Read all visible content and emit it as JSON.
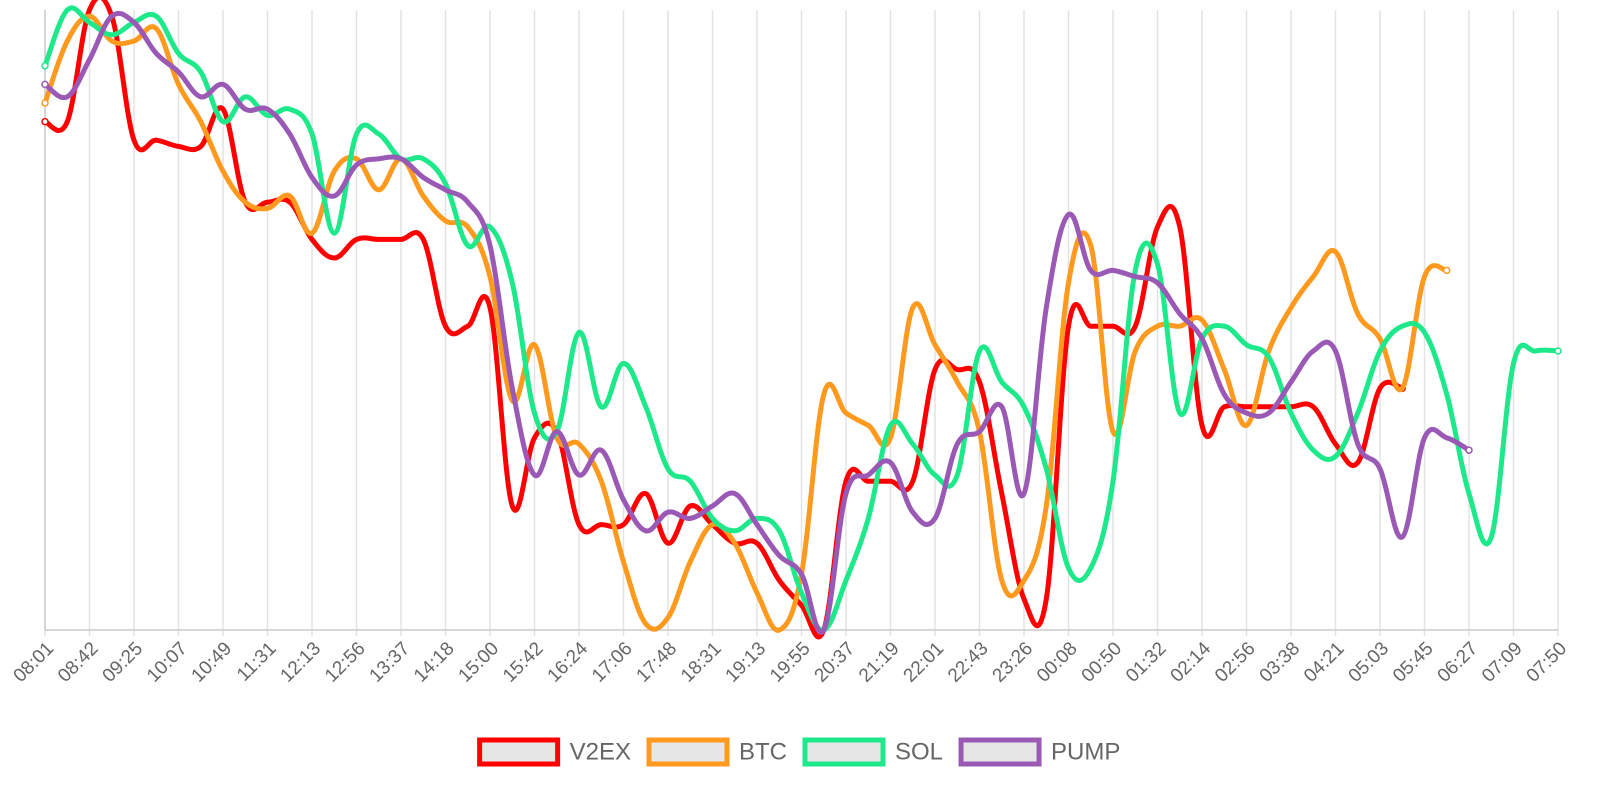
{
  "chart_data": {
    "type": "line",
    "title": "",
    "xlabel": "",
    "ylabel": "",
    "y_axis_labels_visible": false,
    "normalized_y": true,
    "ylim": [
      0,
      1
    ],
    "grid": {
      "vertical": true,
      "horizontal": false
    },
    "legend_position": "bottom-center",
    "x_tick_labels": [
      "08:01",
      "08:42",
      "09:25",
      "10:07",
      "10:49",
      "11:31",
      "12:13",
      "12:56",
      "13:37",
      "14:18",
      "15:00",
      "15:42",
      "16:24",
      "17:06",
      "17:48",
      "18:31",
      "19:13",
      "19:55",
      "20:37",
      "21:19",
      "22:01",
      "22:43",
      "23:26",
      "00:08",
      "00:50",
      "01:32",
      "02:14",
      "02:56",
      "03:38",
      "04:21",
      "05:03",
      "05:45",
      "06:27",
      "07:09",
      "07:50"
    ],
    "series": [
      {
        "name": "V2EX",
        "color": "#ff0000",
        "points": [
          [
            0,
            0.82
          ],
          [
            0.5,
            0.82
          ],
          [
            1,
            1.0
          ],
          [
            1.5,
            0.99
          ],
          [
            2,
            0.79
          ],
          [
            2.5,
            0.79
          ],
          [
            3,
            0.78
          ],
          [
            3.5,
            0.78
          ],
          [
            4,
            0.84
          ],
          [
            4.5,
            0.69
          ],
          [
            5,
            0.69
          ],
          [
            5.5,
            0.69
          ],
          [
            6,
            0.63
          ],
          [
            6.5,
            0.6
          ],
          [
            7,
            0.63
          ],
          [
            7.5,
            0.63
          ],
          [
            8,
            0.63
          ],
          [
            8.5,
            0.63
          ],
          [
            9,
            0.49
          ],
          [
            9.5,
            0.49
          ],
          [
            10,
            0.52
          ],
          [
            10.5,
            0.2
          ],
          [
            11,
            0.31
          ],
          [
            11.5,
            0.32
          ],
          [
            12,
            0.17
          ],
          [
            12.5,
            0.17
          ],
          [
            13,
            0.17
          ],
          [
            13.5,
            0.22
          ],
          [
            14,
            0.14
          ],
          [
            14.5,
            0.2
          ],
          [
            15,
            0.17
          ],
          [
            15.5,
            0.14
          ],
          [
            16,
            0.14
          ],
          [
            16.5,
            0.08
          ],
          [
            17,
            0.04
          ],
          [
            17.5,
            0.0
          ],
          [
            18,
            0.24
          ],
          [
            18.5,
            0.24
          ],
          [
            19,
            0.24
          ],
          [
            19.5,
            0.24
          ],
          [
            20,
            0.42
          ],
          [
            20.5,
            0.42
          ],
          [
            21,
            0.4
          ],
          [
            21.5,
            0.22
          ],
          [
            22,
            0.05
          ],
          [
            22.5,
            0.05
          ],
          [
            23,
            0.49
          ],
          [
            23.5,
            0.49
          ],
          [
            24,
            0.49
          ],
          [
            24.5,
            0.49
          ],
          [
            25,
            0.65
          ],
          [
            25.5,
            0.65
          ],
          [
            26,
            0.33
          ],
          [
            26.5,
            0.36
          ],
          [
            27,
            0.36
          ],
          [
            27.5,
            0.36
          ],
          [
            28,
            0.36
          ],
          [
            28.5,
            0.36
          ],
          [
            29,
            0.3
          ],
          [
            29.5,
            0.27
          ],
          [
            30,
            0.39
          ],
          [
            30.5,
            0.39
          ]
        ]
      },
      {
        "name": "BTC",
        "color": "#ff9a1f",
        "points": [
          [
            0,
            0.85
          ],
          [
            0.5,
            0.95
          ],
          [
            1,
            0.99
          ],
          [
            1.5,
            0.95
          ],
          [
            2,
            0.95
          ],
          [
            2.5,
            0.97
          ],
          [
            3,
            0.88
          ],
          [
            3.5,
            0.82
          ],
          [
            4,
            0.74
          ],
          [
            4.5,
            0.69
          ],
          [
            5,
            0.68
          ],
          [
            5.5,
            0.7
          ],
          [
            6,
            0.64
          ],
          [
            6.5,
            0.74
          ],
          [
            7,
            0.76
          ],
          [
            7.5,
            0.71
          ],
          [
            8,
            0.76
          ],
          [
            8.5,
            0.7
          ],
          [
            9,
            0.66
          ],
          [
            9.5,
            0.65
          ],
          [
            10,
            0.57
          ],
          [
            10.5,
            0.37
          ],
          [
            11,
            0.46
          ],
          [
            11.5,
            0.31
          ],
          [
            12,
            0.3
          ],
          [
            12.5,
            0.24
          ],
          [
            13,
            0.11
          ],
          [
            13.5,
            0.01
          ],
          [
            14,
            0.02
          ],
          [
            14.5,
            0.11
          ],
          [
            15,
            0.17
          ],
          [
            15.5,
            0.14
          ],
          [
            16,
            0.06
          ],
          [
            16.5,
            0.0
          ],
          [
            17,
            0.09
          ],
          [
            17.5,
            0.38
          ],
          [
            18,
            0.35
          ],
          [
            18.5,
            0.33
          ],
          [
            19,
            0.31
          ],
          [
            19.5,
            0.52
          ],
          [
            20,
            0.46
          ],
          [
            20.5,
            0.4
          ],
          [
            21,
            0.32
          ],
          [
            21.5,
            0.08
          ],
          [
            22,
            0.08
          ],
          [
            22.5,
            0.2
          ],
          [
            23,
            0.56
          ],
          [
            23.5,
            0.62
          ],
          [
            24,
            0.32
          ],
          [
            24.5,
            0.45
          ],
          [
            25,
            0.49
          ],
          [
            25.5,
            0.49
          ],
          [
            26,
            0.5
          ],
          [
            26.5,
            0.42
          ],
          [
            27,
            0.33
          ],
          [
            27.5,
            0.45
          ],
          [
            28,
            0.52
          ],
          [
            28.5,
            0.57
          ],
          [
            29,
            0.61
          ],
          [
            29.5,
            0.51
          ],
          [
            30,
            0.47
          ],
          [
            30.5,
            0.39
          ],
          [
            31,
            0.57
          ],
          [
            31.5,
            0.58
          ]
        ]
      },
      {
        "name": "SOL",
        "color": "#1de98b",
        "points": [
          [
            0,
            0.91
          ],
          [
            0.5,
            1.0
          ],
          [
            1,
            0.98
          ],
          [
            1.5,
            0.96
          ],
          [
            2,
            0.98
          ],
          [
            2.5,
            0.99
          ],
          [
            3,
            0.93
          ],
          [
            3.5,
            0.9
          ],
          [
            4,
            0.82
          ],
          [
            4.5,
            0.86
          ],
          [
            5,
            0.83
          ],
          [
            5.5,
            0.84
          ],
          [
            6,
            0.8
          ],
          [
            6.5,
            0.64
          ],
          [
            7,
            0.8
          ],
          [
            7.5,
            0.8
          ],
          [
            8,
            0.76
          ],
          [
            8.5,
            0.76
          ],
          [
            9,
            0.72
          ],
          [
            9.5,
            0.62
          ],
          [
            10,
            0.65
          ],
          [
            10.5,
            0.56
          ],
          [
            11,
            0.35
          ],
          [
            11.5,
            0.32
          ],
          [
            12,
            0.48
          ],
          [
            12.5,
            0.36
          ],
          [
            13,
            0.43
          ],
          [
            13.5,
            0.36
          ],
          [
            14,
            0.26
          ],
          [
            14.5,
            0.24
          ],
          [
            15,
            0.18
          ],
          [
            15.5,
            0.16
          ],
          [
            16,
            0.18
          ],
          [
            16.5,
            0.16
          ],
          [
            17,
            0.06
          ],
          [
            17.5,
            0.0
          ],
          [
            18,
            0.08
          ],
          [
            18.5,
            0.18
          ],
          [
            19,
            0.33
          ],
          [
            19.5,
            0.3
          ],
          [
            20,
            0.25
          ],
          [
            20.5,
            0.25
          ],
          [
            21,
            0.45
          ],
          [
            21.5,
            0.4
          ],
          [
            22,
            0.36
          ],
          [
            22.5,
            0.26
          ],
          [
            23,
            0.1
          ],
          [
            23.5,
            0.1
          ],
          [
            24,
            0.24
          ],
          [
            24.5,
            0.58
          ],
          [
            25,
            0.59
          ],
          [
            25.5,
            0.35
          ],
          [
            26,
            0.47
          ],
          [
            26.5,
            0.49
          ],
          [
            27,
            0.46
          ],
          [
            27.5,
            0.44
          ],
          [
            28,
            0.35
          ],
          [
            28.5,
            0.29
          ],
          [
            29,
            0.28
          ],
          [
            29.5,
            0.35
          ],
          [
            30,
            0.45
          ],
          [
            30.5,
            0.49
          ],
          [
            31,
            0.48
          ],
          [
            31.5,
            0.38
          ],
          [
            32,
            0.22
          ],
          [
            32.5,
            0.15
          ],
          [
            33,
            0.43
          ],
          [
            33.5,
            0.45
          ],
          [
            34,
            0.45
          ]
        ]
      },
      {
        "name": "PUMP",
        "color": "#9b59b6",
        "points": [
          [
            0,
            0.88
          ],
          [
            0.5,
            0.86
          ],
          [
            1,
            0.92
          ],
          [
            1.5,
            0.99
          ],
          [
            2,
            0.98
          ],
          [
            2.5,
            0.93
          ],
          [
            3,
            0.9
          ],
          [
            3.5,
            0.86
          ],
          [
            4,
            0.88
          ],
          [
            4.5,
            0.84
          ],
          [
            5,
            0.84
          ],
          [
            5.5,
            0.8
          ],
          [
            6,
            0.73
          ],
          [
            6.5,
            0.7
          ],
          [
            7,
            0.75
          ],
          [
            7.5,
            0.76
          ],
          [
            8,
            0.76
          ],
          [
            8.5,
            0.73
          ],
          [
            9,
            0.71
          ],
          [
            9.5,
            0.69
          ],
          [
            10,
            0.62
          ],
          [
            10.5,
            0.39
          ],
          [
            11,
            0.25
          ],
          [
            11.5,
            0.32
          ],
          [
            12,
            0.25
          ],
          [
            12.5,
            0.29
          ],
          [
            13,
            0.21
          ],
          [
            13.5,
            0.16
          ],
          [
            14,
            0.19
          ],
          [
            14.5,
            0.18
          ],
          [
            15,
            0.2
          ],
          [
            15.5,
            0.22
          ],
          [
            16,
            0.17
          ],
          [
            16.5,
            0.12
          ],
          [
            17,
            0.09
          ],
          [
            17.5,
            0.0
          ],
          [
            18,
            0.22
          ],
          [
            18.5,
            0.25
          ],
          [
            19,
            0.27
          ],
          [
            19.5,
            0.19
          ],
          [
            20,
            0.18
          ],
          [
            20.5,
            0.3
          ],
          [
            21,
            0.32
          ],
          [
            21.5,
            0.36
          ],
          [
            22,
            0.22
          ],
          [
            22.5,
            0.52
          ],
          [
            23,
            0.67
          ],
          [
            23.5,
            0.58
          ],
          [
            24,
            0.58
          ],
          [
            24.5,
            0.57
          ],
          [
            25,
            0.56
          ],
          [
            25.5,
            0.51
          ],
          [
            26,
            0.47
          ],
          [
            26.5,
            0.38
          ],
          [
            27,
            0.35
          ],
          [
            27.5,
            0.35
          ],
          [
            28,
            0.4
          ],
          [
            28.5,
            0.45
          ],
          [
            29,
            0.45
          ],
          [
            29.5,
            0.3
          ],
          [
            30,
            0.26
          ],
          [
            30.5,
            0.15
          ],
          [
            31,
            0.31
          ],
          [
            31.5,
            0.31
          ],
          [
            32,
            0.29
          ]
        ]
      }
    ]
  }
}
